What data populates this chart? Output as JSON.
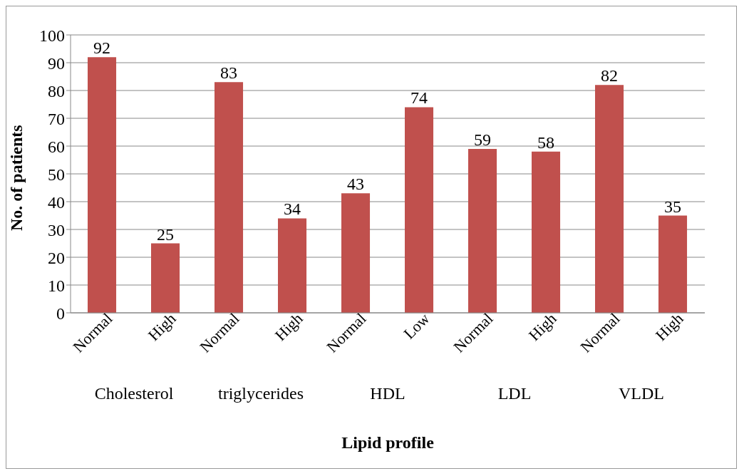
{
  "chart_data": {
    "type": "bar",
    "xlabel": "Lipid profile",
    "ylabel": "No. of patients",
    "categories": [
      "Normal",
      "High",
      "Normal",
      "High",
      "Normal",
      "Low",
      "Normal",
      "High",
      "Normal",
      "High"
    ],
    "values": [
      92,
      25,
      83,
      34,
      43,
      74,
      59,
      58,
      82,
      35
    ],
    "color": "#c0504d",
    "ylim": [
      0,
      100
    ],
    "yticks": [
      0,
      10,
      20,
      30,
      40,
      50,
      60,
      70,
      80,
      90,
      100
    ],
    "grid": "y",
    "data_labels": true,
    "annotations": [
      "Cholesterol",
      "triglycerides",
      "HDL",
      "LDL",
      "VLDL"
    ]
  }
}
